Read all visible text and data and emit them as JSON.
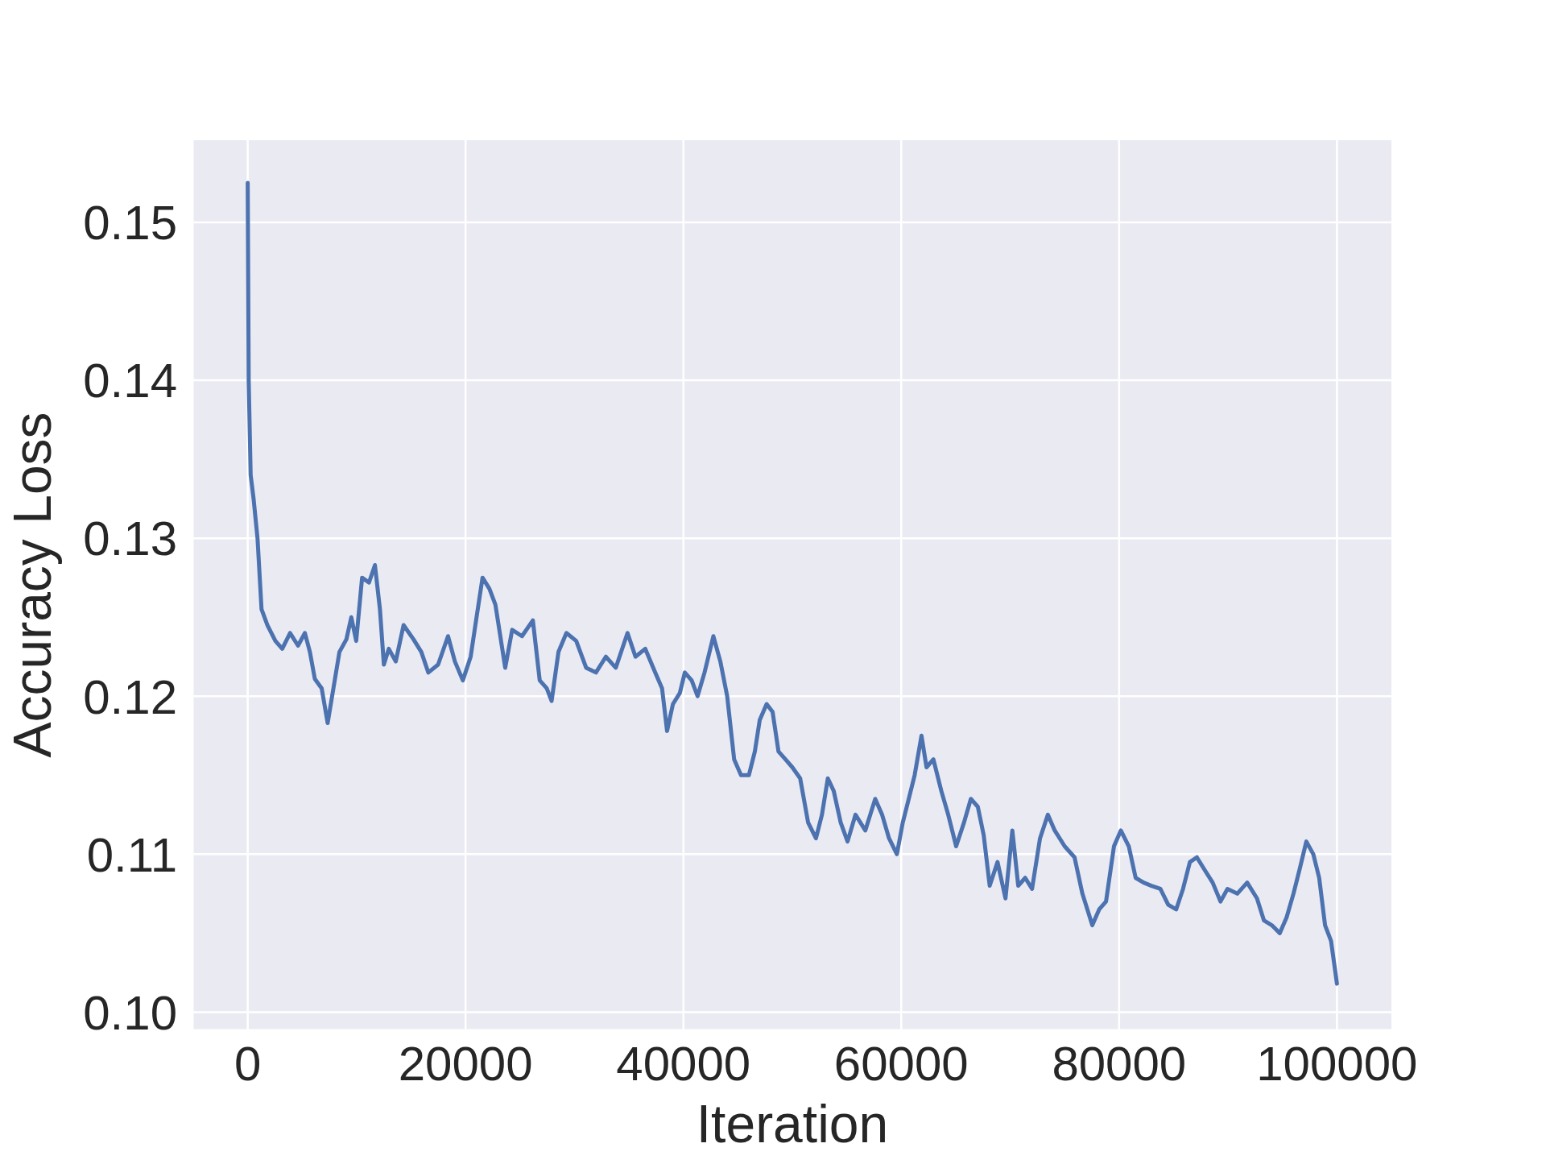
{
  "chart_data": {
    "type": "line",
    "xlabel": "Iteration",
    "ylabel": "Accuracy Loss",
    "color": "#4c72b0",
    "x": [
      0,
      90,
      270,
      540,
      900,
      1270,
      1810,
      2540,
      3170,
      3890,
      4620,
      5250,
      5710,
      6160,
      6790,
      7340,
      8420,
      9060,
      9510,
      9960,
      10500,
      11140,
      11680,
      12140,
      12500,
      12950,
      13590,
      14310,
      15220,
      15940,
      16580,
      17480,
      18390,
      19020,
      19750,
      20470,
      21010,
      21560,
      22190,
      22740,
      23370,
      23640,
      24280,
      25180,
      26180,
      26810,
      27450,
      27900,
      28530,
      29260,
      30160,
      31070,
      31970,
      32880,
      33790,
      34870,
      35600,
      36500,
      37410,
      38040,
      38500,
      39040,
      39670,
      40130,
      40760,
      41300,
      41940,
      42750,
      43390,
      44020,
      44660,
      45290,
      46010,
      46560,
      47010,
      47640,
      48190,
      48730,
      49370,
      50000,
      50720,
      51450,
      52170,
      52720,
      53260,
      53800,
      54440,
      55070,
      55800,
      56700,
      57610,
      58240,
      58880,
      59600,
      60140,
      60690,
      61230,
      61860,
      62320,
      62950,
      63680,
      64310,
      65040,
      65760,
      66390,
      67030,
      67570,
      68120,
      68840,
      69570,
      70200,
      70740,
      71380,
      72010,
      72740,
      73460,
      74090,
      75000,
      75910,
      76630,
      77540,
      78170,
      78800,
      79530,
      80160,
      80890,
      81520,
      82250,
      82970,
      83790,
      84510,
      85240,
      85870,
      86500,
      87140,
      87860,
      88590,
      89310,
      89950,
      90850,
      91760,
      92660,
      93300,
      94020,
      94750,
      95380,
      96010,
      96560,
      97190,
      97830,
      98370,
      98910,
      99460,
      100000
    ],
    "values": [
      0.1525,
      0.14,
      0.134,
      0.1325,
      0.13,
      0.1255,
      0.1245,
      0.1235,
      0.123,
      0.124,
      0.1232,
      0.124,
      0.1228,
      0.1211,
      0.1205,
      0.1183,
      0.1228,
      0.1236,
      0.125,
      0.1235,
      0.1275,
      0.1272,
      0.1283,
      0.1255,
      0.122,
      0.123,
      0.1222,
      0.1245,
      0.1236,
      0.1228,
      0.1215,
      0.122,
      0.1238,
      0.1222,
      0.121,
      0.1225,
      0.125,
      0.1275,
      0.1268,
      0.1258,
      0.123,
      0.1218,
      0.1242,
      0.1238,
      0.1248,
      0.121,
      0.1205,
      0.1197,
      0.1228,
      0.124,
      0.1235,
      0.1218,
      0.1215,
      0.1225,
      0.1218,
      0.124,
      0.1225,
      0.123,
      0.1215,
      0.1205,
      0.1178,
      0.1195,
      0.1202,
      0.1215,
      0.121,
      0.12,
      0.1215,
      0.1238,
      0.1222,
      0.12,
      0.116,
      0.115,
      0.115,
      0.1165,
      0.1185,
      0.1195,
      0.119,
      0.1165,
      0.116,
      0.1155,
      0.1148,
      0.112,
      0.111,
      0.1125,
      0.1148,
      0.114,
      0.112,
      0.1108,
      0.1125,
      0.1115,
      0.1135,
      0.1125,
      0.111,
      0.11,
      0.112,
      0.1135,
      0.115,
      0.1175,
      0.1155,
      0.116,
      0.114,
      0.1125,
      0.1105,
      0.112,
      0.1135,
      0.113,
      0.1112,
      0.108,
      0.1095,
      0.1072,
      0.1115,
      0.108,
      0.1085,
      0.1078,
      0.111,
      0.1125,
      0.1115,
      0.1105,
      0.1098,
      0.1075,
      0.1055,
      0.1065,
      0.107,
      0.1105,
      0.1115,
      0.1105,
      0.1085,
      0.1082,
      0.108,
      0.1078,
      0.1068,
      0.1065,
      0.1078,
      0.1095,
      0.1098,
      0.109,
      0.1082,
      0.107,
      0.1078,
      0.1075,
      0.1082,
      0.1072,
      0.1058,
      0.1055,
      0.105,
      0.106,
      0.1075,
      0.109,
      0.1108,
      0.11,
      0.1085,
      0.1055,
      0.1045,
      0.1018
    ],
    "xlim": [
      -5000,
      105000
    ],
    "ylim": [
      0.0989,
      0.1552
    ],
    "xticks": [
      0,
      20000,
      40000,
      60000,
      80000,
      100000
    ],
    "yticks": [
      {
        "value": 0.1,
        "label": "0.10"
      },
      0.11,
      0.12,
      0.13,
      0.14,
      0.15
    ],
    "grid": true,
    "marker": "none",
    "line_style": "solid"
  }
}
